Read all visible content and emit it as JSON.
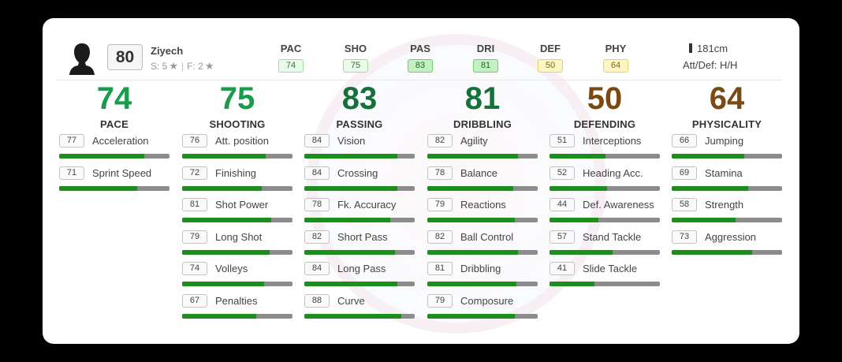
{
  "player": {
    "name": "Ziyech",
    "rating": "80",
    "skills_label": "S: 5",
    "foot_label": "F: 2",
    "height": "181cm",
    "workrate": "Att/Def: H/H"
  },
  "summary": [
    {
      "label": "PAC",
      "value": "74",
      "color": "#eafbea"
    },
    {
      "label": "SHO",
      "value": "75",
      "color": "#eafbea"
    },
    {
      "label": "PAS",
      "value": "83",
      "color": "#c3f1c3"
    },
    {
      "label": "DRI",
      "value": "81",
      "color": "#c3f1c3"
    },
    {
      "label": "DEF",
      "value": "50",
      "color": "#fdf6c3"
    },
    {
      "label": "PHY",
      "value": "64",
      "color": "#fdf6c3"
    }
  ],
  "categories": [
    {
      "score": "74",
      "name": "PACE",
      "color": "#1a9c4a",
      "stats": [
        {
          "value": "77",
          "name": "Acceleration"
        },
        {
          "value": "71",
          "name": "Sprint Speed"
        }
      ]
    },
    {
      "score": "75",
      "name": "SHOOTING",
      "color": "#1a9c4a",
      "stats": [
        {
          "value": "76",
          "name": "Att. position"
        },
        {
          "value": "72",
          "name": "Finishing"
        },
        {
          "value": "81",
          "name": "Shot Power"
        },
        {
          "value": "79",
          "name": "Long Shot"
        },
        {
          "value": "74",
          "name": "Volleys"
        },
        {
          "value": "67",
          "name": "Penalties"
        }
      ]
    },
    {
      "score": "83",
      "name": "PASSING",
      "color": "#16703a",
      "stats": [
        {
          "value": "84",
          "name": "Vision"
        },
        {
          "value": "84",
          "name": "Crossing"
        },
        {
          "value": "78",
          "name": "Fk. Accuracy"
        },
        {
          "value": "82",
          "name": "Short Pass"
        },
        {
          "value": "84",
          "name": "Long Pass"
        },
        {
          "value": "88",
          "name": "Curve"
        }
      ]
    },
    {
      "score": "81",
      "name": "DRIBBLING",
      "color": "#16703a",
      "stats": [
        {
          "value": "82",
          "name": "Agility"
        },
        {
          "value": "78",
          "name": "Balance"
        },
        {
          "value": "79",
          "name": "Reactions"
        },
        {
          "value": "82",
          "name": "Ball Control"
        },
        {
          "value": "81",
          "name": "Dribbling"
        },
        {
          "value": "79",
          "name": "Composure"
        }
      ]
    },
    {
      "score": "50",
      "name": "DEFENDING",
      "color": "#7a4a12",
      "stats": [
        {
          "value": "51",
          "name": "Interceptions"
        },
        {
          "value": "52",
          "name": "Heading Acc."
        },
        {
          "value": "44",
          "name": "Def. Awareness"
        },
        {
          "value": "57",
          "name": "Stand Tackle"
        },
        {
          "value": "41",
          "name": "Slide Tackle"
        }
      ]
    },
    {
      "score": "64",
      "name": "PHYSICALITY",
      "color": "#7a4a12",
      "stats": [
        {
          "value": "66",
          "name": "Jumping"
        },
        {
          "value": "69",
          "name": "Stamina"
        },
        {
          "value": "58",
          "name": "Strength"
        },
        {
          "value": "73",
          "name": "Aggression"
        }
      ]
    }
  ]
}
